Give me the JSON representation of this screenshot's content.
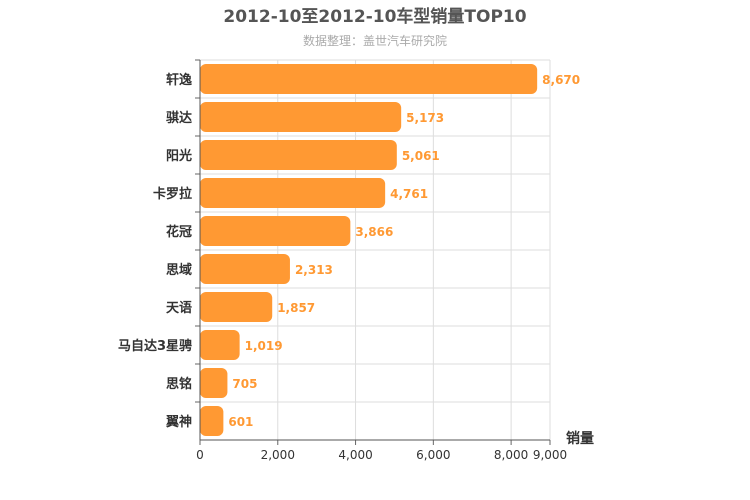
{
  "chart_data": {
    "type": "bar",
    "orientation": "horizontal",
    "title": "2012-10至2012-10车型销量TOP10",
    "subtitle": "数据整理：盖世汽车研究院",
    "xlabel": "销量",
    "ylabel": "",
    "categories": [
      "轩逸",
      "骐达",
      "阳光",
      "卡罗拉",
      "花冠",
      "思域",
      "天语",
      "马自达3星骋",
      "思铭",
      "翼神"
    ],
    "values": [
      8670,
      5173,
      5061,
      4761,
      3866,
      2313,
      1857,
      1019,
      705,
      601
    ],
    "value_labels": [
      "8,670",
      "5,173",
      "5,061",
      "4,761",
      "3,866",
      "2,313",
      "1,857",
      "1,019",
      "705",
      "601"
    ],
    "xlim": [
      0,
      9000
    ],
    "x_ticks": [
      0,
      2000,
      4000,
      6000,
      8000,
      9000
    ],
    "x_tick_labels": [
      "0",
      "2,000",
      "4,000",
      "6,000",
      "8,000",
      "9,000"
    ],
    "grid": true,
    "bar_color": "#ff9933",
    "label_color": "#ff9933"
  }
}
